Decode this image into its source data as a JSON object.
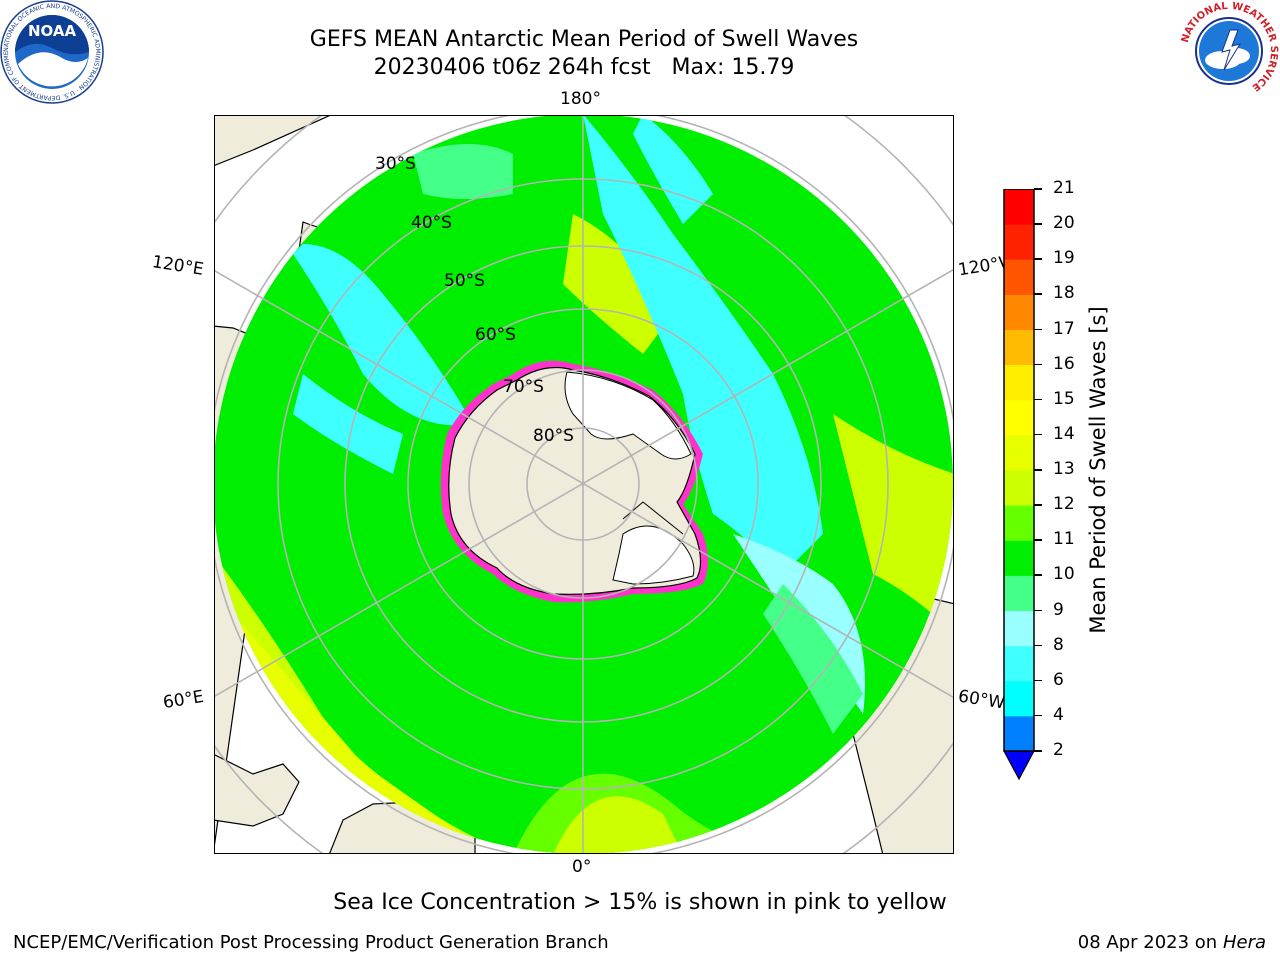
{
  "header": {
    "title_line1": "GEFS MEAN Antarctic Mean Period of Swell Waves",
    "title_line2": "20230406 t06z 264h fcst   Max: 15.79"
  },
  "logos": {
    "left": {
      "name": "noaa-logo",
      "text": "NOAA",
      "ring_text": "NATIONAL OCEANIC AND ATMOSPHERIC ADMINISTRATION · U.S. DEPARTMENT OF COMMERCE"
    },
    "right": {
      "name": "nws-logo",
      "ring_text": "NATIONAL WEATHER SERVICE"
    }
  },
  "map": {
    "projection": "south-polar-stereographic",
    "longitude_labels": {
      "top": "180°",
      "bottom": "0°",
      "upper_left": "120°E",
      "upper_right": "120°W",
      "lower_left": "60°E",
      "lower_right": "60°W"
    },
    "latitude_labels": [
      "30°S",
      "40°S",
      "50°S",
      "60°S",
      "70°S",
      "80°S"
    ],
    "colors": {
      "land": "#efecdc",
      "ice_shelf": "#ffffff",
      "grid": "#b4b4b4",
      "sea_ice_edge": [
        "#ff33cc",
        "#ff9900",
        "#ffff00"
      ]
    }
  },
  "colorbar": {
    "label": "Mean Period of Swell Waves [s]",
    "ticks": [
      "2",
      "4",
      "6",
      "8",
      "9",
      "10",
      "11",
      "12",
      "13",
      "14",
      "15",
      "16",
      "17",
      "18",
      "19",
      "20",
      "21"
    ],
    "colors": [
      "#0080ff",
      "#00ffff",
      "#40ffff",
      "#99ffff",
      "#44ff88",
      "#00ee00",
      "#66ff00",
      "#ccff00",
      "#e8ff00",
      "#ffff00",
      "#ffee00",
      "#ffbb00",
      "#ff8800",
      "#ff5500",
      "#ff2200",
      "#ff0000"
    ],
    "under_color": "#0000ff"
  },
  "notes": {
    "sea_ice": "Sea Ice Concentration > 15% is shown in pink to yellow"
  },
  "footer": {
    "left": "NCEP/EMC/Verification Post Processing Product Generation Branch",
    "right_date": "08 Apr 2023 on",
    "right_machine": "Hera"
  }
}
